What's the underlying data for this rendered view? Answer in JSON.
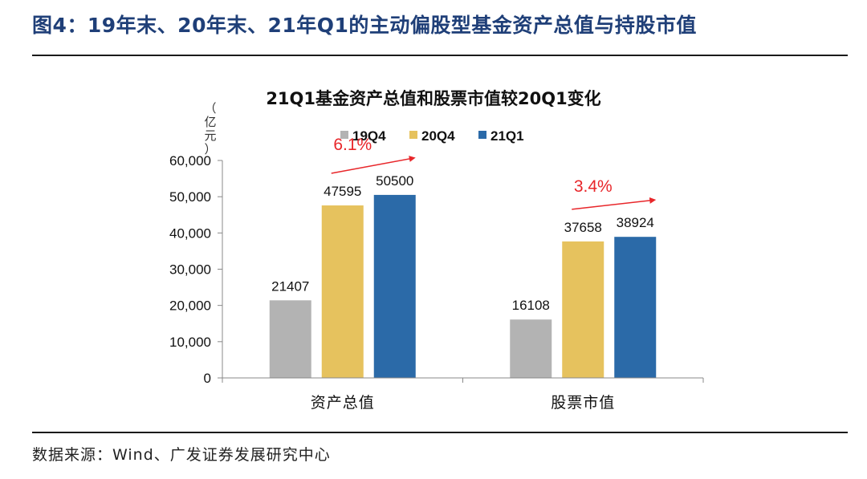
{
  "figure_title": "图4：19年末、20年末、21年Q1的主动偏股型基金资产总值与持股市值",
  "source": "数据来源：Wind、广发证券发展研究中心",
  "colors": {
    "19Q4": "#b3b3b3",
    "20Q4": "#e6c25e",
    "21Q1": "#2b6aa8",
    "arrow": "#e8262a"
  },
  "chart_data": {
    "type": "bar",
    "title": "21Q1基金资产总值和股票市值较20Q1变化",
    "ylabel": "（亿元）",
    "ylabel_chars": [
      "（",
      "亿",
      "元",
      "）"
    ],
    "ylim": [
      0,
      60000
    ],
    "yticks": [
      0,
      10000,
      20000,
      30000,
      40000,
      50000,
      60000
    ],
    "ytick_labels": [
      "0",
      "10,000",
      "20,000",
      "30,000",
      "40,000",
      "50,000",
      "60,000"
    ],
    "categories": [
      "资产总值",
      "股票市值"
    ],
    "legend_position": "top",
    "series": [
      {
        "name": "19Q4",
        "values": [
          21407,
          16108
        ]
      },
      {
        "name": "20Q4",
        "values": [
          47595,
          37658
        ]
      },
      {
        "name": "21Q1",
        "values": [
          50500,
          38924
        ]
      }
    ],
    "annotations": [
      "6.1%",
      "3.4%"
    ]
  }
}
